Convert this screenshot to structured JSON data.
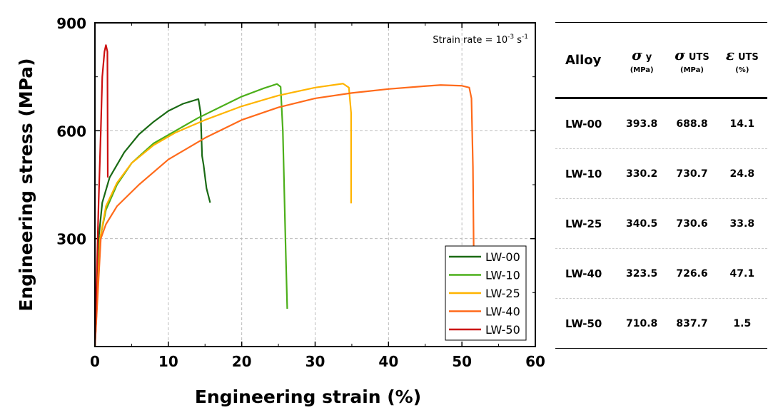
{
  "chart_data": {
    "type": "line",
    "xlabel": "Engineering strain (%)",
    "ylabel": "Engineering stress (MPa)",
    "xlim": [
      0,
      60
    ],
    "ylim": [
      0,
      900
    ],
    "xticks": [
      "0",
      "10",
      "20",
      "30",
      "40",
      "50",
      "60"
    ],
    "yticks": [
      "300",
      "600",
      "900"
    ],
    "grid": true,
    "annotation": {
      "text": "Strain rate = 10",
      "sup1": "-3",
      "unit": " s",
      "sup2": "-1"
    },
    "legend_position": "bottom-right",
    "series": [
      {
        "name": "LW-00",
        "color": "#1a6a14",
        "points": [
          [
            0,
            0
          ],
          [
            0.5,
            300
          ],
          [
            1,
            400
          ],
          [
            2,
            470
          ],
          [
            4,
            540
          ],
          [
            6,
            590
          ],
          [
            8,
            625
          ],
          [
            10,
            655
          ],
          [
            12,
            675
          ],
          [
            14.1,
            688
          ],
          [
            14.4,
            650
          ],
          [
            14.6,
            530
          ],
          [
            14.8,
            505
          ],
          [
            15.2,
            440
          ],
          [
            15.7,
            400
          ]
        ]
      },
      {
        "name": "LW-10",
        "color": "#4caf1a",
        "points": [
          [
            0,
            0
          ],
          [
            0.7,
            300
          ],
          [
            1.5,
            380
          ],
          [
            3,
            450
          ],
          [
            5,
            510
          ],
          [
            8,
            565
          ],
          [
            11,
            600
          ],
          [
            14,
            635
          ],
          [
            17,
            665
          ],
          [
            20,
            695
          ],
          [
            23,
            718
          ],
          [
            24.8,
            730
          ],
          [
            25.3,
            722
          ],
          [
            25.6,
            600
          ],
          [
            26,
            260
          ],
          [
            26.2,
            105
          ]
        ]
      },
      {
        "name": "LW-25",
        "color": "#ffb400",
        "points": [
          [
            0,
            0
          ],
          [
            0.7,
            300
          ],
          [
            1.5,
            390
          ],
          [
            3,
            455
          ],
          [
            5,
            510
          ],
          [
            8,
            560
          ],
          [
            11,
            595
          ],
          [
            15,
            630
          ],
          [
            20,
            668
          ],
          [
            25,
            698
          ],
          [
            30,
            720
          ],
          [
            33.8,
            731
          ],
          [
            34.6,
            720
          ],
          [
            34.9,
            650
          ],
          [
            34.9,
            398
          ]
        ]
      },
      {
        "name": "LW-40",
        "color": "#ff6a1a",
        "points": [
          [
            0,
            0
          ],
          [
            0.8,
            300
          ],
          [
            1.5,
            340
          ],
          [
            3,
            390
          ],
          [
            6,
            450
          ],
          [
            10,
            520
          ],
          [
            15,
            580
          ],
          [
            20,
            630
          ],
          [
            25,
            665
          ],
          [
            30,
            690
          ],
          [
            35,
            705
          ],
          [
            40,
            716
          ],
          [
            45,
            724
          ],
          [
            47.1,
            727
          ],
          [
            50,
            725
          ],
          [
            51,
            720
          ],
          [
            51.3,
            690
          ],
          [
            51.5,
            500
          ],
          [
            51.6,
            280
          ]
        ]
      },
      {
        "name": "LW-50",
        "color": "#cc1010",
        "points": [
          [
            0,
            0
          ],
          [
            0.5,
            400
          ],
          [
            0.8,
            600
          ],
          [
            1.0,
            750
          ],
          [
            1.3,
            820
          ],
          [
            1.5,
            838
          ],
          [
            1.7,
            820
          ],
          [
            1.75,
            470
          ]
        ]
      }
    ]
  },
  "table": {
    "headers": {
      "alloy": "Alloy",
      "sy": "σ",
      "sy_sub": "y",
      "sy_unit": "(MPa)",
      "suts": "σ",
      "suts_sub": "UTS",
      "suts_unit": "(MPa)",
      "euts": "ε",
      "euts_sub": "UTS",
      "euts_unit": "(%)"
    },
    "rows": [
      [
        "LW-00",
        "393.8",
        "688.8",
        "14.1"
      ],
      [
        "LW-10",
        "330.2",
        "730.7",
        "24.8"
      ],
      [
        "LW-25",
        "340.5",
        "730.6",
        "33.8"
      ],
      [
        "LW-40",
        "323.5",
        "726.6",
        "47.1"
      ],
      [
        "LW-50",
        "710.8",
        "837.7",
        "1.5"
      ]
    ]
  }
}
